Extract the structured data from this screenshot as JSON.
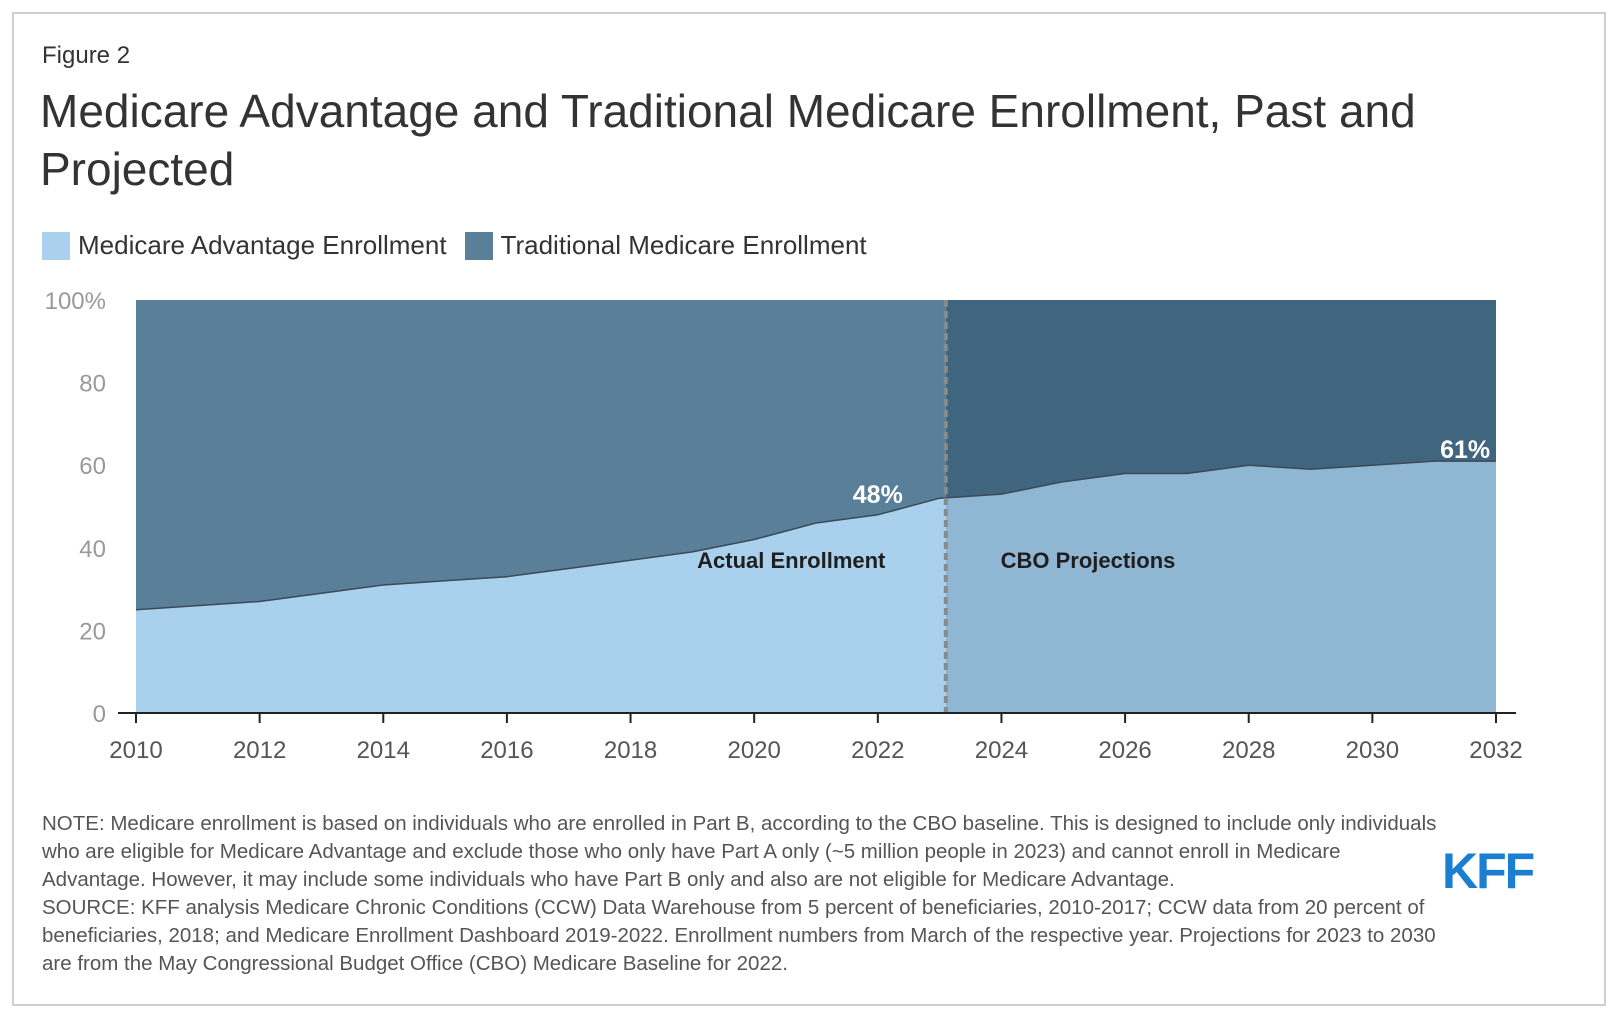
{
  "figure_label": "Figure 2",
  "title": "Medicare Advantage and Traditional Medicare Enrollment, Past and Projected",
  "legend": [
    {
      "label": "Medicare Advantage Enrollment",
      "color": "#a9d0ec"
    },
    {
      "label": "Traditional Medicare Enrollment",
      "color": "#5a7f99"
    }
  ],
  "notes": {
    "note": "NOTE: Medicare enrollment is based on individuals who are enrolled in Part B, according to the CBO baseline. This is designed to include only individuals who are eligible for Medicare Advantage and exclude those who only have Part A only (~5 million people in 2023) and cannot enroll in Medicare Advantage. However, it may include some individuals who have Part B only and also are not eligible for Medicare Advantage.",
    "source": "SOURCE: KFF analysis Medicare Chronic Conditions (CCW) Data Warehouse from 5 percent of beneficiaries, 2010-2017; CCW data from 20 percent of beneficiaries, 2018; and Medicare Enrollment Dashboard 2019-2022. Enrollment numbers from March of the respective year. Projections for 2023 to 2030 are from the May Congressional Budget Office (CBO) Medicare Baseline for 2022."
  },
  "logo_text": "KFF",
  "chart_data": {
    "type": "area",
    "stacked": true,
    "title": "Medicare Advantage and Traditional Medicare Enrollment, Past and Projected",
    "x": [
      2010,
      2011,
      2012,
      2013,
      2014,
      2015,
      2016,
      2017,
      2018,
      2019,
      2020,
      2021,
      2022,
      2023,
      2024,
      2025,
      2026,
      2027,
      2028,
      2029,
      2030,
      2031,
      2032
    ],
    "series": [
      {
        "name": "Medicare Advantage Enrollment",
        "values": [
          25,
          26,
          27,
          29,
          31,
          32,
          33,
          35,
          37,
          39,
          42,
          46,
          48,
          52,
          53,
          56,
          58,
          58,
          60,
          59,
          60,
          61,
          61
        ]
      },
      {
        "name": "Traditional Medicare Enrollment",
        "values": [
          75,
          74,
          73,
          71,
          69,
          68,
          67,
          65,
          63,
          61,
          58,
          54,
          52,
          48,
          47,
          44,
          42,
          42,
          40,
          41,
          40,
          39,
          39
        ]
      }
    ],
    "y_ticks": [
      "0",
      "20",
      "40",
      "60",
      "80",
      "100%"
    ],
    "x_ticks": [
      "2010",
      "2012",
      "2014",
      "2016",
      "2018",
      "2020",
      "2022",
      "2024",
      "2026",
      "2028",
      "2030",
      "2032"
    ],
    "ylim": [
      0,
      100
    ],
    "xlim": [
      2010,
      2032
    ],
    "divider_x": 2023.1,
    "annotations": [
      {
        "text": "48%",
        "x": 2022,
        "y": 48
      },
      {
        "text": "61%",
        "x": 2031.5,
        "y": 61
      },
      {
        "text": "Actual Enrollment",
        "x": 2020.6,
        "y": 37
      },
      {
        "text": "CBO Projections",
        "x": 2025.4,
        "y": 37
      }
    ],
    "colors": {
      "ma_actual": "#a9d0ec",
      "ma_projected": "#8fb7d4",
      "tm_actual": "#5a7f99",
      "tm_projected": "#40657f",
      "divider": "#8a8a8a"
    },
    "legend_position": "top-left"
  }
}
